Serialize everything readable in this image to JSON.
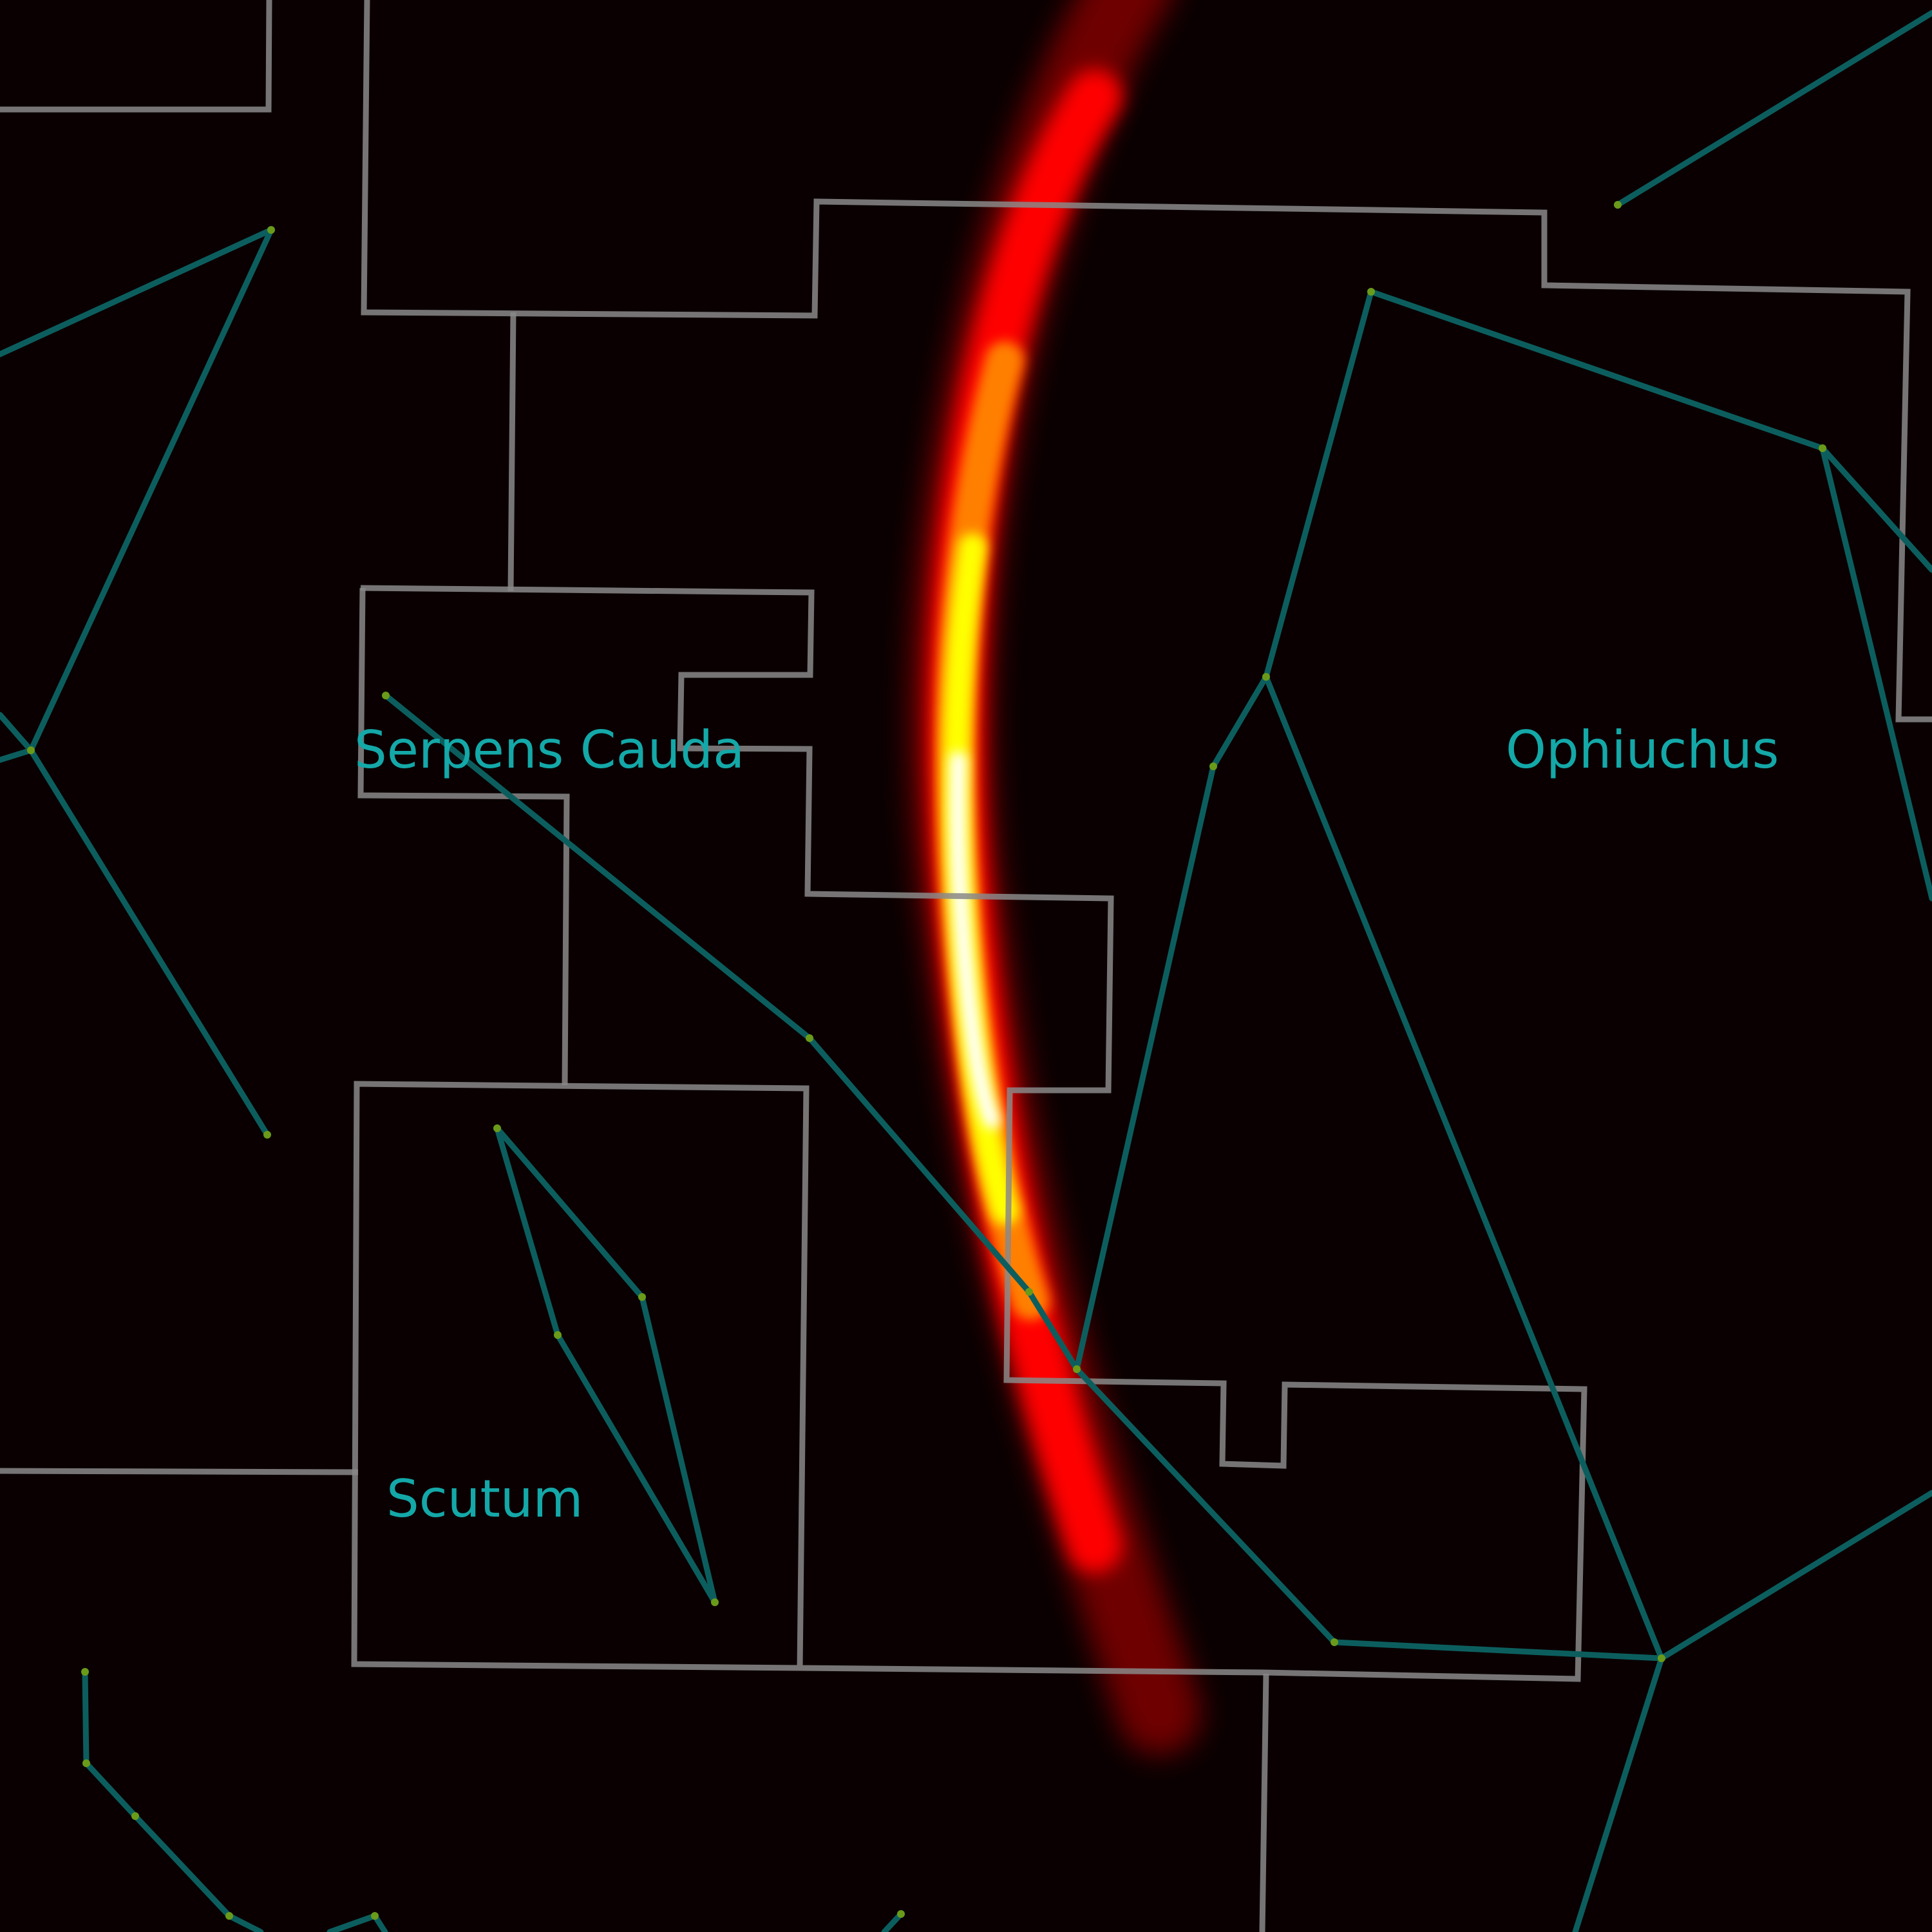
{
  "map": {
    "background_color": "#0a0002",
    "boundary_color": "#8a8888",
    "figure_color": "#0c5e5e",
    "star_color": "#6a9a1a",
    "label_color": "#14a8a8",
    "band_colors": [
      "#ffffff",
      "#ffff00",
      "#ff8000",
      "#ff0000",
      "#7a0000"
    ]
  },
  "constellations": [
    {
      "name": "Serpens Cauda"
    },
    {
      "name": "Ophiuchus"
    },
    {
      "name": "Scutum"
    }
  ]
}
